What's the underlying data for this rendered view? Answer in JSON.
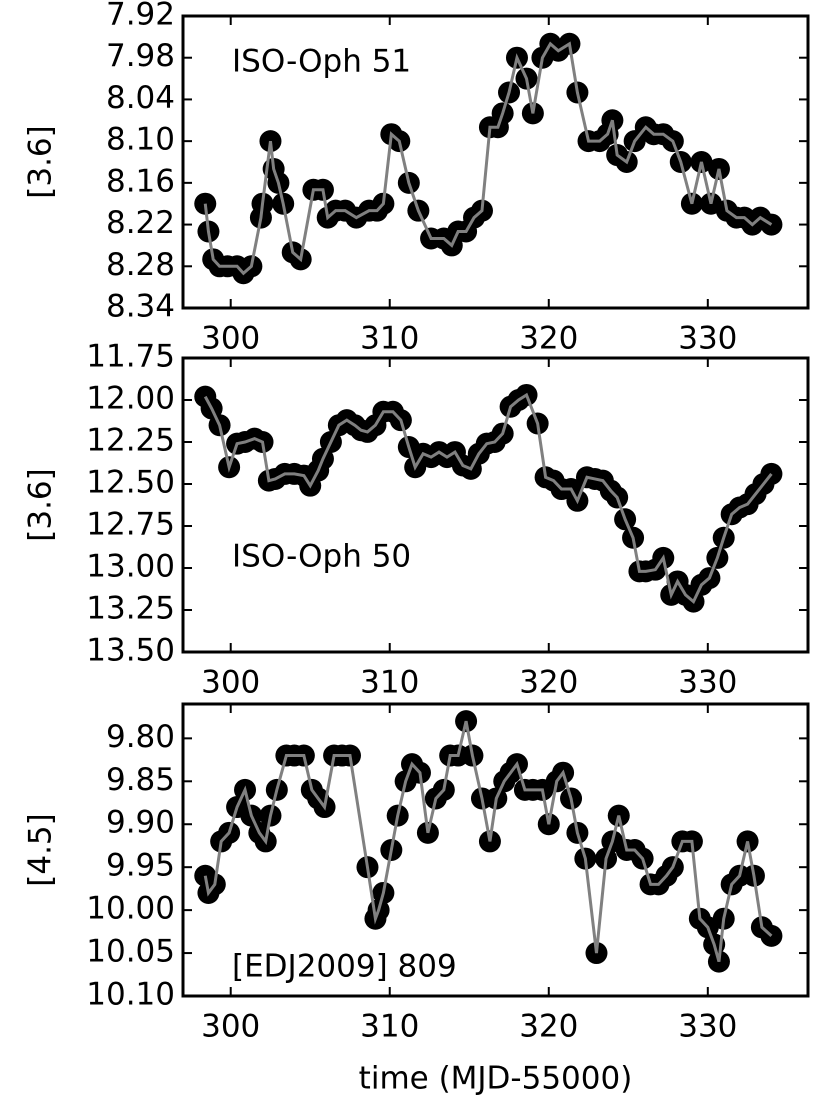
{
  "chart_data": [
    {
      "type": "line",
      "ylabel": "[3.6]",
      "annotation": "ISO-Oph 51",
      "y_inverted": true,
      "xlim": [
        297,
        336.3
      ],
      "xticks": [
        300,
        310,
        320,
        330
      ],
      "ylim": [
        7.92,
        8.34
      ],
      "yticks": [
        7.92,
        7.98,
        8.04,
        {
          "value": 8.1,
          "label": "8.10"
        },
        8.16,
        8.22,
        8.28,
        8.34
      ],
      "x": [
        298.4,
        298.6,
        298.9,
        299.3,
        299.8,
        300.4,
        300.8,
        301.3,
        301.9,
        302.0,
        302.5,
        302.7,
        303.0,
        303.3,
        303.9,
        304.4,
        305.2,
        305.8,
        306.1,
        306.6,
        307.2,
        307.9,
        308.7,
        309.2,
        309.6,
        310.1,
        310.6,
        311.2,
        311.8,
        312.6,
        313.4,
        313.9,
        314.3,
        314.8,
        315.3,
        315.8,
        316.3,
        316.8,
        317.1,
        317.5,
        318.0,
        318.6,
        319.0,
        319.6,
        320.1,
        320.6,
        321.3,
        321.8,
        322.5,
        323.2,
        323.7,
        324.0,
        324.3,
        324.9,
        325.4,
        326.1,
        326.6,
        327.2,
        327.8,
        328.3,
        329.0,
        329.6,
        330.2,
        330.7,
        331.2,
        331.8,
        332.3,
        332.8,
        333.3,
        334.0
      ],
      "series": [
        {
          "color": "#808080",
          "marker_color": "#000000",
          "values": [
            8.19,
            8.23,
            8.27,
            8.28,
            8.28,
            8.28,
            8.29,
            8.28,
            8.21,
            8.19,
            8.1,
            8.14,
            8.16,
            8.19,
            8.26,
            8.27,
            8.17,
            8.17,
            8.21,
            8.2,
            8.2,
            8.21,
            8.2,
            8.2,
            8.19,
            8.09,
            8.1,
            8.16,
            8.2,
            8.24,
            8.24,
            8.25,
            8.23,
            8.23,
            8.21,
            8.2,
            8.08,
            8.08,
            8.06,
            8.03,
            7.98,
            8.01,
            8.06,
            7.98,
            7.96,
            7.97,
            7.96,
            8.03,
            8.1,
            8.1,
            8.09,
            8.07,
            8.12,
            8.13,
            8.1,
            8.08,
            8.09,
            8.09,
            8.1,
            8.13,
            8.19,
            8.13,
            8.19,
            8.14,
            8.2,
            8.21,
            8.21,
            8.22,
            8.21,
            8.22
          ]
        }
      ]
    },
    {
      "type": "line",
      "ylabel": "[3.6]",
      "annotation": "ISO-Oph 50",
      "y_inverted": true,
      "xlim": [
        297,
        336.3
      ],
      "xticks": [
        300,
        310,
        320,
        330
      ],
      "ylim": [
        11.75,
        13.5
      ],
      "yticks": [
        11.75,
        {
          "value": 12,
          "label": "12.00"
        },
        12.25,
        {
          "value": 12.5,
          "label": "12.50"
        },
        12.75,
        {
          "value": 13,
          "label": "13.00"
        },
        13.25,
        {
          "value": 13.5,
          "label": "13.50"
        }
      ],
      "x": [
        298.4,
        298.8,
        299.3,
        299.9,
        300.4,
        300.9,
        301.5,
        302.0,
        302.4,
        302.8,
        303.4,
        304.0,
        304.6,
        305.0,
        305.5,
        305.8,
        306.3,
        306.8,
        307.3,
        307.8,
        308.2,
        308.6,
        309.1,
        309.6,
        310.2,
        310.7,
        311.2,
        311.6,
        312.1,
        312.6,
        313.1,
        313.6,
        314.1,
        314.6,
        315.1,
        315.6,
        316.1,
        316.6,
        317.1,
        317.6,
        318.1,
        318.6,
        319.3,
        319.8,
        320.3,
        320.8,
        321.4,
        321.8,
        322.4,
        322.9,
        323.4,
        323.9,
        324.3,
        324.8,
        325.3,
        325.7,
        326.1,
        326.7,
        327.2,
        327.7,
        328.1,
        328.6,
        329.1,
        329.6,
        330.1,
        330.6,
        331.0,
        331.5,
        332.0,
        332.5,
        333.0,
        333.5,
        334.0
      ],
      "series": [
        {
          "color": "#808080",
          "marker_color": "#000000",
          "values": [
            11.98,
            12.05,
            12.15,
            12.4,
            12.26,
            12.25,
            12.23,
            12.25,
            12.48,
            12.47,
            12.44,
            12.44,
            12.45,
            12.51,
            12.42,
            12.35,
            12.25,
            12.15,
            12.12,
            12.15,
            12.18,
            12.19,
            12.15,
            12.07,
            12.07,
            12.12,
            12.28,
            12.4,
            12.32,
            12.34,
            12.31,
            12.34,
            12.31,
            12.39,
            12.41,
            12.32,
            12.26,
            12.25,
            12.2,
            12.04,
            12.0,
            11.97,
            12.14,
            12.46,
            12.48,
            12.53,
            12.53,
            12.6,
            12.46,
            12.47,
            12.48,
            12.54,
            12.58,
            12.71,
            12.82,
            13.02,
            13.02,
            13.01,
            12.94,
            13.16,
            13.08,
            13.16,
            13.2,
            13.1,
            13.06,
            12.94,
            12.82,
            12.68,
            12.64,
            12.62,
            12.56,
            12.5,
            12.44
          ]
        }
      ]
    },
    {
      "type": "line",
      "ylabel": "[4.5]",
      "annotation": "[EDJ2009] 809",
      "y_inverted": true,
      "xlabel": "time (MJD-55000)",
      "xlim": [
        297,
        336.3
      ],
      "xticks": [
        300,
        310,
        320,
        330
      ],
      "ylim": [
        9.76,
        10.1
      ],
      "yticks": [
        {
          "value": 9.8,
          "label": "9.80"
        },
        9.85,
        {
          "value": 9.9,
          "label": "9.90"
        },
        9.95,
        {
          "value": 10,
          "label": "10.00"
        },
        10.05,
        {
          "value": 10.1,
          "label": "10.10"
        }
      ],
      "x": [
        298.4,
        298.6,
        299.0,
        299.4,
        299.9,
        300.4,
        300.9,
        301.3,
        301.8,
        302.2,
        302.5,
        302.9,
        303.5,
        304.0,
        304.6,
        305.1,
        305.5,
        305.9,
        306.5,
        307.0,
        307.5,
        308.6,
        309.1,
        309.3,
        309.6,
        310.1,
        310.5,
        311.0,
        311.4,
        311.9,
        312.4,
        312.9,
        313.4,
        313.8,
        314.3,
        314.8,
        315.2,
        315.8,
        316.3,
        316.7,
        317.2,
        317.6,
        318.0,
        318.5,
        319.0,
        319.6,
        320.0,
        320.5,
        320.9,
        321.4,
        321.8,
        322.3,
        323.0,
        323.6,
        324.0,
        324.4,
        324.9,
        325.4,
        325.9,
        326.4,
        326.9,
        327.4,
        327.8,
        328.4,
        329.0,
        329.5,
        330.0,
        330.4,
        330.7,
        331.0,
        331.5,
        332.0,
        332.5,
        332.9,
        333.4,
        334.0
      ],
      "series": [
        {
          "color": "#808080",
          "marker_color": "#000000",
          "values": [
            9.96,
            9.98,
            9.97,
            9.92,
            9.91,
            9.88,
            9.86,
            9.89,
            9.91,
            9.92,
            9.89,
            9.86,
            9.82,
            9.82,
            9.82,
            9.86,
            9.87,
            9.88,
            9.82,
            9.82,
            9.82,
            9.95,
            10.01,
            10.0,
            9.98,
            9.93,
            9.89,
            9.85,
            9.83,
            9.84,
            9.91,
            9.87,
            9.86,
            9.82,
            9.82,
            9.78,
            9.82,
            9.87,
            9.92,
            9.87,
            9.85,
            9.84,
            9.83,
            9.86,
            9.86,
            9.86,
            9.9,
            9.85,
            9.84,
            9.87,
            9.91,
            9.94,
            10.05,
            9.94,
            9.92,
            9.89,
            9.93,
            9.93,
            9.94,
            9.97,
            9.97,
            9.96,
            9.95,
            9.92,
            9.92,
            10.01,
            10.02,
            10.04,
            10.06,
            10.01,
            9.97,
            9.96,
            9.92,
            9.96,
            10.02,
            10.03
          ]
        }
      ]
    }
  ]
}
